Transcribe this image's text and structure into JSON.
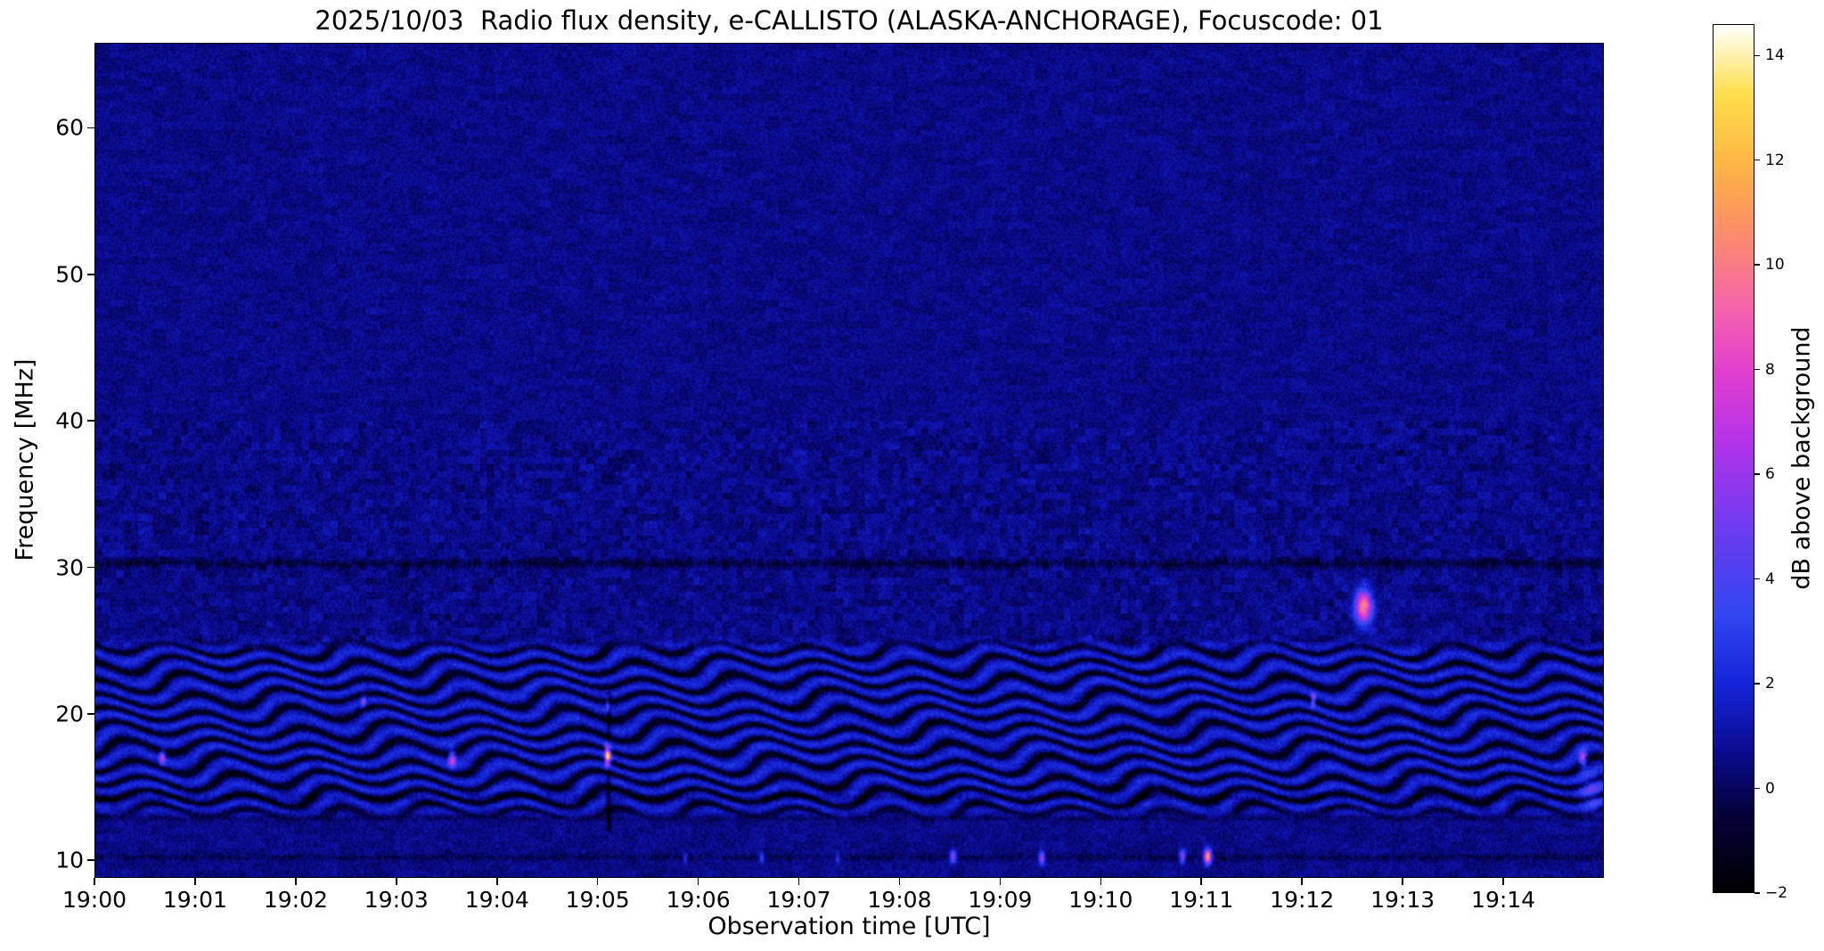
{
  "chart_data": {
    "type": "heatmap",
    "title": "2025/10/03  Radio flux density, e-CALLISTO (ALASKA-ANCHORAGE), Focuscode: 01",
    "xlabel": "Observation time [UTC]",
    "ylabel": "Frequency [MHz]",
    "x_range_seconds": [
      0,
      900
    ],
    "y_range_mhz": [
      8.8,
      65.8
    ],
    "x_ticks": [
      {
        "label": "19:00",
        "t": 0
      },
      {
        "label": "19:01",
        "t": 60
      },
      {
        "label": "19:02",
        "t": 120
      },
      {
        "label": "19:03",
        "t": 180
      },
      {
        "label": "19:04",
        "t": 240
      },
      {
        "label": "19:05",
        "t": 300
      },
      {
        "label": "19:06",
        "t": 360
      },
      {
        "label": "19:07",
        "t": 420
      },
      {
        "label": "19:08",
        "t": 480
      },
      {
        "label": "19:09",
        "t": 540
      },
      {
        "label": "19:10",
        "t": 600
      },
      {
        "label": "19:11",
        "t": 660
      },
      {
        "label": "19:12",
        "t": 720
      },
      {
        "label": "19:13",
        "t": 780
      },
      {
        "label": "19:14",
        "t": 840
      }
    ],
    "y_ticks": [
      {
        "label": "10",
        "f": 10
      },
      {
        "label": "20",
        "f": 20
      },
      {
        "label": "30",
        "f": 30
      },
      {
        "label": "40",
        "f": 40
      },
      {
        "label": "50",
        "f": 50
      },
      {
        "label": "60",
        "f": 60
      }
    ],
    "colorbar": {
      "label": "dB above background",
      "range": [
        -2,
        14.6
      ],
      "ticks": [
        {
          "label": "−2",
          "v": -2
        },
        {
          "label": "0",
          "v": 0
        },
        {
          "label": "2",
          "v": 2
        },
        {
          "label": "4",
          "v": 4
        },
        {
          "label": "6",
          "v": 6
        },
        {
          "label": "8",
          "v": 8
        },
        {
          "label": "10",
          "v": 10
        },
        {
          "label": "12",
          "v": 12
        },
        {
          "label": "14",
          "v": 14
        }
      ],
      "stops": [
        {
          "p": 0.0,
          "c": "#000000"
        },
        {
          "p": 0.09,
          "c": "#04013a"
        },
        {
          "p": 0.16,
          "c": "#0b0b8f"
        },
        {
          "p": 0.24,
          "c": "#1524d8"
        },
        {
          "p": 0.32,
          "c": "#3146f0"
        },
        {
          "p": 0.42,
          "c": "#6e3bf0"
        },
        {
          "p": 0.52,
          "c": "#b433e8"
        },
        {
          "p": 0.6,
          "c": "#e23ed0"
        },
        {
          "p": 0.68,
          "c": "#f567a8"
        },
        {
          "p": 0.76,
          "c": "#fb8c69"
        },
        {
          "p": 0.84,
          "c": "#fdb544"
        },
        {
          "p": 0.92,
          "c": "#fede4a"
        },
        {
          "p": 1.0,
          "c": "#ffffff"
        }
      ]
    },
    "background": {
      "base_db": 0.55,
      "noise_db": 0.55
    },
    "interference_band": {
      "f_min": 12.6,
      "f_max": 25.3,
      "stripe_wavelength_mhz": 1.12,
      "amplitude_db": 1.25
    },
    "dark_lines": [
      {
        "f": 30.25,
        "depth": 1.5,
        "sigma": 0.22
      },
      {
        "f": 14.25,
        "depth": 1.1,
        "sigma": 0.18
      },
      {
        "f": 10.15,
        "depth": 1.0,
        "sigma": 0.15
      },
      {
        "f": 12.85,
        "depth": 0.8,
        "sigma": 0.15
      }
    ],
    "dark_streaks": [
      {
        "t": 306.5,
        "f_min": 12.0,
        "f_max": 21.5,
        "depth": 2.2,
        "sigma_t": 0.9
      }
    ],
    "bright_spots": [
      {
        "t": 40,
        "f": 17.0,
        "amp": 6,
        "st": 1.2,
        "sf": 0.35
      },
      {
        "t": 160,
        "f": 20.8,
        "amp": 4,
        "st": 1.0,
        "sf": 0.3
      },
      {
        "t": 213,
        "f": 16.9,
        "amp": 7,
        "st": 1.5,
        "sf": 0.4
      },
      {
        "t": 306,
        "f": 17.1,
        "amp": 14,
        "st": 1.2,
        "sf": 0.5
      },
      {
        "t": 306,
        "f": 20.6,
        "amp": 5,
        "st": 0.8,
        "sf": 0.3
      },
      {
        "t": 352,
        "f": 10.1,
        "amp": 3,
        "st": 1.0,
        "sf": 0.25
      },
      {
        "t": 398,
        "f": 10.1,
        "amp": 3.5,
        "st": 1.0,
        "sf": 0.25
      },
      {
        "t": 443,
        "f": 10.1,
        "amp": 3,
        "st": 0.8,
        "sf": 0.25
      },
      {
        "t": 512,
        "f": 10.2,
        "amp": 6,
        "st": 1.3,
        "sf": 0.3
      },
      {
        "t": 565,
        "f": 10.1,
        "amp": 6.5,
        "st": 1.3,
        "sf": 0.3
      },
      {
        "t": 649,
        "f": 10.2,
        "amp": 6,
        "st": 1.2,
        "sf": 0.3
      },
      {
        "t": 664,
        "f": 10.2,
        "amp": 12,
        "st": 1.5,
        "sf": 0.35
      },
      {
        "t": 727,
        "f": 20.9,
        "amp": 6,
        "st": 1.0,
        "sf": 0.3
      },
      {
        "t": 757,
        "f": 27.3,
        "amp": 10,
        "st": 3.5,
        "sf": 0.8
      },
      {
        "t": 888,
        "f": 16.9,
        "amp": 7,
        "st": 1.5,
        "sf": 0.4
      },
      {
        "t": 893,
        "f": 14.6,
        "amp": 3,
        "st": 5.0,
        "sf": 0.9
      }
    ]
  }
}
